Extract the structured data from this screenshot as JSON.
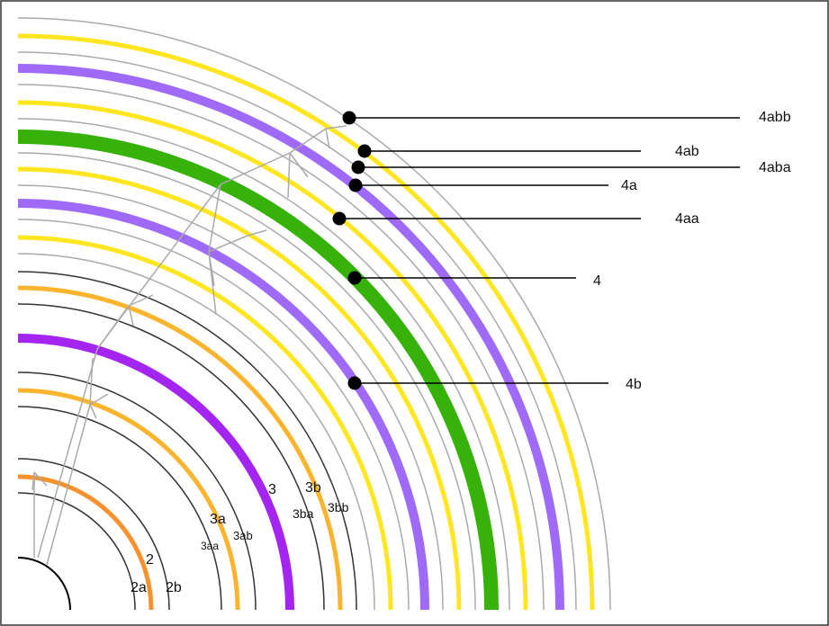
{
  "arcs": [
    {
      "id": "inner",
      "r": 58,
      "color": "#000000",
      "width": 2
    },
    {
      "id": "2aa-ring",
      "r": 130,
      "color": "#333333",
      "width": 1.5
    },
    {
      "id": "2a",
      "r": 148,
      "color": "#F7922F",
      "width": 5
    },
    {
      "id": "2-ring",
      "r": 168,
      "color": "#333333",
      "width": 1.5
    },
    {
      "id": "3aa-ring",
      "r": 226,
      "color": "#333333",
      "width": 1.5
    },
    {
      "id": "3a",
      "r": 244,
      "color": "#FBB42D",
      "width": 5
    },
    {
      "id": "3ab-ring",
      "r": 264,
      "color": "#333333",
      "width": 1.5
    },
    {
      "id": "3",
      "r": 302,
      "color": "#A424F0",
      "width": 10
    },
    {
      "id": "3ba-ring",
      "r": 340,
      "color": "#333333",
      "width": 1.5
    },
    {
      "id": "3b",
      "r": 358,
      "color": "#FBB42D",
      "width": 5
    },
    {
      "id": "3bb-ring",
      "r": 376,
      "color": "#333333",
      "width": 1.5
    },
    {
      "id": "g1",
      "r": 396,
      "color": "#AAAAAA",
      "width": 1.5
    },
    {
      "id": "y1",
      "r": 414,
      "color": "#FFE620",
      "width": 5
    },
    {
      "id": "g2",
      "r": 434,
      "color": "#AAAAAA",
      "width": 1.5
    },
    {
      "id": "4b",
      "r": 452,
      "color": "#9E6AF7",
      "width": 10
    },
    {
      "id": "g3",
      "r": 472,
      "color": "#AAAAAA",
      "width": 1.5
    },
    {
      "id": "y2",
      "r": 490,
      "color": "#FFE620",
      "width": 5
    },
    {
      "id": "g4",
      "r": 508,
      "color": "#AAAAAA",
      "width": 1.5
    },
    {
      "id": "4",
      "r": 526,
      "color": "#37B20B",
      "width": 16
    },
    {
      "id": "g5",
      "r": 546,
      "color": "#AAAAAA",
      "width": 1.5
    },
    {
      "id": "y3",
      "r": 564,
      "color": "#FFE620",
      "width": 5
    },
    {
      "id": "g6",
      "r": 584,
      "color": "#AAAAAA",
      "width": 1.5
    },
    {
      "id": "4a",
      "r": 602,
      "color": "#9E6AF7",
      "width": 10
    },
    {
      "id": "g7",
      "r": 620,
      "color": "#AAAAAA",
      "width": 1.5
    },
    {
      "id": "y4",
      "r": 638,
      "color": "#FFE620",
      "width": 5
    },
    {
      "id": "g8",
      "r": 658,
      "color": "#AAAAAA",
      "width": 1.5
    }
  ],
  "labels": [
    {
      "text": "2",
      "size": 16
    },
    {
      "text": "2a",
      "size": 16
    },
    {
      "text": "2b",
      "size": 16
    },
    {
      "text": "3a",
      "size": 16
    },
    {
      "text": "3aa",
      "size": 12
    },
    {
      "text": "3ab",
      "size": 13
    },
    {
      "text": "3",
      "size": 16
    },
    {
      "text": "3b",
      "size": 16
    },
    {
      "text": "3ba",
      "size": 14
    },
    {
      "text": "3bb",
      "size": 14
    }
  ],
  "callouts": [
    {
      "text": "4abb"
    },
    {
      "text": "4ab"
    },
    {
      "text": "4aba"
    },
    {
      "text": "4a"
    },
    {
      "text": "4aa"
    },
    {
      "text": "4"
    },
    {
      "text": "4b"
    }
  ],
  "colors": {
    "frame": "#333333",
    "connector": "#AAAAAA",
    "dot": "#000000",
    "leader": "#000000"
  }
}
